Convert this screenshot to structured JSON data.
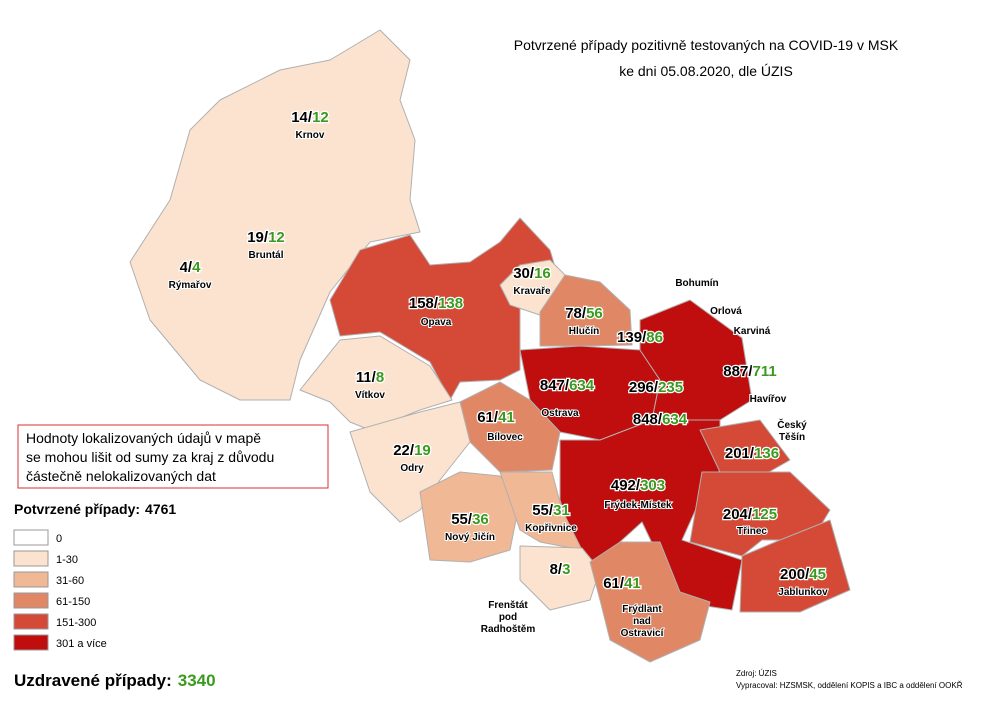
{
  "title": [
    "Potvrzené případy pozitivně testovaných na COVID-19 v MSK",
    "ke dni 05.08.2020, dle ÚZIS"
  ],
  "separator": "/",
  "districts": [
    {
      "name": [
        "Krnov"
      ],
      "confirmed": 14,
      "recovered": 12
    },
    {
      "name": [
        "Bruntál"
      ],
      "confirmed": 19,
      "recovered": 12
    },
    {
      "name": [
        "Rýmařov"
      ],
      "confirmed": 4,
      "recovered": 4
    },
    {
      "name": [
        "Opava"
      ],
      "confirmed": 158,
      "recovered": 138
    },
    {
      "name": [
        "Kravaře"
      ],
      "confirmed": 30,
      "recovered": 16
    },
    {
      "name": [
        "Hlučín"
      ],
      "confirmed": 78,
      "recovered": 56
    },
    {
      "name": [
        "Bohumín"
      ],
      "confirmed": 139,
      "recovered": 86
    },
    {
      "name": [
        "Orlová"
      ],
      "confirmed": 296,
      "recovered": 235
    },
    {
      "name": [
        "Karviná"
      ],
      "confirmed": 887,
      "recovered": 711
    },
    {
      "name": [
        "Vítkov"
      ],
      "confirmed": 11,
      "recovered": 8
    },
    {
      "name": [
        "Ostrava"
      ],
      "confirmed": 847,
      "recovered": 634
    },
    {
      "name": [
        "Havířov"
      ],
      "confirmed": 848,
      "recovered": 634
    },
    {
      "name": [
        "Bílovec"
      ],
      "confirmed": 61,
      "recovered": 41
    },
    {
      "name": [
        "Český",
        "Těšín"
      ],
      "confirmed": 201,
      "recovered": 136
    },
    {
      "name": [
        "Odry"
      ],
      "confirmed": 22,
      "recovered": 19
    },
    {
      "name": [
        "Frýdek-Místek"
      ],
      "confirmed": 492,
      "recovered": 303
    },
    {
      "name": [
        "Třinec"
      ],
      "confirmed": 204,
      "recovered": 125
    },
    {
      "name": [
        "Nový Jičín"
      ],
      "confirmed": 55,
      "recovered": 36
    },
    {
      "name": [
        "Kopřivnice"
      ],
      "confirmed": 55,
      "recovered": 31
    },
    {
      "name": [
        "Frenštát",
        "pod",
        "Radhoštěm"
      ],
      "confirmed": 8,
      "recovered": 3
    },
    {
      "name": [
        "Frýdlant",
        "nad",
        "Ostravicí"
      ],
      "confirmed": 61,
      "recovered": 41
    },
    {
      "name": [
        "Jablunkov"
      ],
      "confirmed": 200,
      "recovered": 45
    }
  ],
  "note": [
    "Hodnoty lokalizovaných údajů v mapě",
    "se mohou lišit od sumy za kraj z důvodu",
    "částečně nelokalizovaných dat"
  ],
  "confirmed_total": {
    "label": "Potvrzené případy:",
    "value": 4761
  },
  "legend": [
    {
      "label": "0",
      "color": "#ffffff"
    },
    {
      "label": "1-30",
      "color": "#fbe3cf"
    },
    {
      "label": "31-60",
      "color": "#f0b894"
    },
    {
      "label": "61-150",
      "color": "#e08866"
    },
    {
      "label": "151-300",
      "color": "#d44a37"
    },
    {
      "label": "301 a více",
      "color": "#c00d0d"
    }
  ],
  "recovered_total": {
    "label": "Uzdravené případy:",
    "value": 3340
  },
  "source": [
    "Zdroj: ÚZIS",
    "Vypracoval: HZSMSK, oddělení KOPIS a IBC a oddělení OOKŘ"
  ]
}
